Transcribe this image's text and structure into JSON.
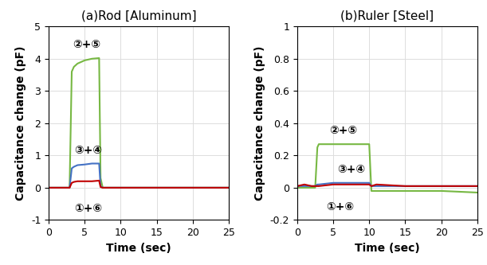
{
  "chart_data": [
    {
      "type": "line",
      "title": "(a)Rod [Aluminum]",
      "x_label": "Time (sec)",
      "y_label": "Capacitance change (pF)",
      "x": [
        0,
        1,
        2,
        2.9,
        3.2,
        3.5,
        4,
        5,
        6,
        7,
        7.2,
        7.5,
        8,
        10,
        15,
        20,
        25
      ],
      "series": [
        {
          "name": "②+⑤",
          "color": "#77b843",
          "values": [
            0,
            0,
            0,
            0,
            3.6,
            3.75,
            3.85,
            3.95,
            4.0,
            4.02,
            0.3,
            0,
            0,
            0,
            0,
            0,
            0
          ]
        },
        {
          "name": "③+④",
          "color": "#4472c4",
          "values": [
            0,
            0,
            0,
            0,
            0.6,
            0.65,
            0.7,
            0.72,
            0.75,
            0.75,
            0.05,
            0,
            0,
            0,
            0,
            0,
            0
          ]
        },
        {
          "name": "①+⑥",
          "color": "#c00000",
          "values": [
            0,
            0,
            0,
            0,
            0.15,
            0.18,
            0.2,
            0.2,
            0.2,
            0.22,
            0.02,
            0,
            0,
            0,
            0,
            0,
            0
          ]
        }
      ],
      "xlim": [
        0,
        25
      ],
      "xticks": [
        0,
        5,
        10,
        15,
        20,
        25
      ],
      "ylim": [
        -1,
        5
      ],
      "yticks": [
        -1,
        0,
        1,
        2,
        3,
        4,
        5
      ],
      "grid": true
    },
    {
      "type": "line",
      "title": "(b)Ruler [Steel]",
      "x_label": "Time (sec)",
      "y_label": "Capacitance change (pF)",
      "x": [
        0,
        1,
        2,
        2.5,
        2.8,
        3,
        5,
        7,
        9,
        10,
        10.3,
        11,
        15,
        20,
        25
      ],
      "series": [
        {
          "name": "②+⑤",
          "color": "#77b843",
          "values": [
            0,
            0,
            0,
            0,
            0.25,
            0.27,
            0.27,
            0.27,
            0.27,
            0.27,
            -0.02,
            -0.02,
            -0.02,
            -0.02,
            -0.03
          ]
        },
        {
          "name": "③+④",
          "color": "#4472c4",
          "values": [
            0.01,
            0.01,
            0.01,
            0.01,
            0.02,
            0.02,
            0.03,
            0.03,
            0.03,
            0.03,
            0.01,
            0.01,
            0.01,
            0.01,
            0.01
          ]
        },
        {
          "name": "①+⑥",
          "color": "#c00000",
          "values": [
            0.01,
            0.02,
            0.01,
            0.01,
            0.01,
            0.01,
            0.02,
            0.02,
            0.02,
            0.02,
            0.01,
            0.02,
            0.01,
            0.01,
            0.01
          ]
        }
      ],
      "xlim": [
        0,
        25
      ],
      "xticks": [
        0,
        5,
        10,
        15,
        20,
        25
      ],
      "ylim": [
        -0.2,
        1
      ],
      "yticks": [
        -0.2,
        0,
        0.2,
        0.4,
        0.6,
        0.8,
        1
      ],
      "grid": true
    }
  ]
}
